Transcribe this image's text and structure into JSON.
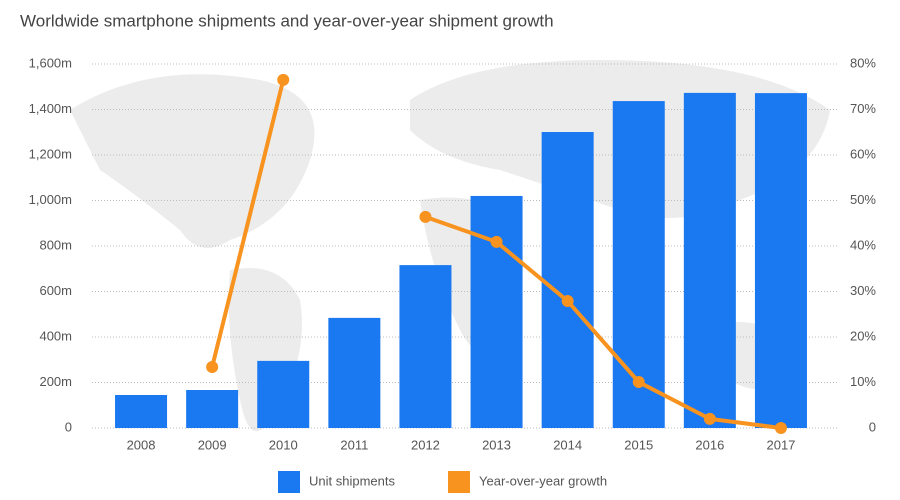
{
  "chart_data": {
    "type": "combo",
    "title": "Worldwide smartphone shipments and year-over-year shipment growth",
    "categories": [
      "2008",
      "2009",
      "2010",
      "2011",
      "2012",
      "2013",
      "2014",
      "2015",
      "2016",
      "2017"
    ],
    "series": [
      {
        "name": "Unit shipments",
        "type": "bar",
        "color": "#1a78f0",
        "values": [
          145,
          167,
          295,
          484,
          716,
          1020,
          1301,
          1437,
          1473,
          1472
        ]
      },
      {
        "name": "Year-over-year growth",
        "type": "line",
        "axis": "y2",
        "color": "#f7931e",
        "values": [
          null,
          13.4,
          76.5,
          null,
          46.4,
          40.9,
          27.9,
          10.1,
          2.0,
          0.0
        ]
      }
    ],
    "ylim": [
      0,
      1600
    ],
    "yticks": [
      0,
      {
        "value": 200,
        "label": "200m"
      },
      {
        "value": 400,
        "label": "400m"
      },
      {
        "value": 600,
        "label": "600m"
      },
      {
        "value": 800,
        "label": "800m"
      },
      {
        "value": 1000,
        "label": "1,000m"
      },
      {
        "value": 1200,
        "label": "1,200m"
      },
      {
        "value": 1400,
        "label": "1,400m"
      },
      {
        "value": 1600,
        "label": "1,600m"
      }
    ],
    "y2lim": [
      0,
      80
    ],
    "y2ticks": [
      0,
      {
        "value": 10,
        "label": "10%"
      },
      {
        "value": 20,
        "label": "20%"
      },
      {
        "value": 30,
        "label": "30%"
      },
      {
        "value": 40,
        "label": "40%"
      },
      {
        "value": 50,
        "label": "50%"
      },
      {
        "value": 60,
        "label": "60%"
      },
      {
        "value": 70,
        "label": "70%"
      },
      {
        "value": 80,
        "label": "80%"
      }
    ],
    "grid": true,
    "legend": "bottom"
  }
}
